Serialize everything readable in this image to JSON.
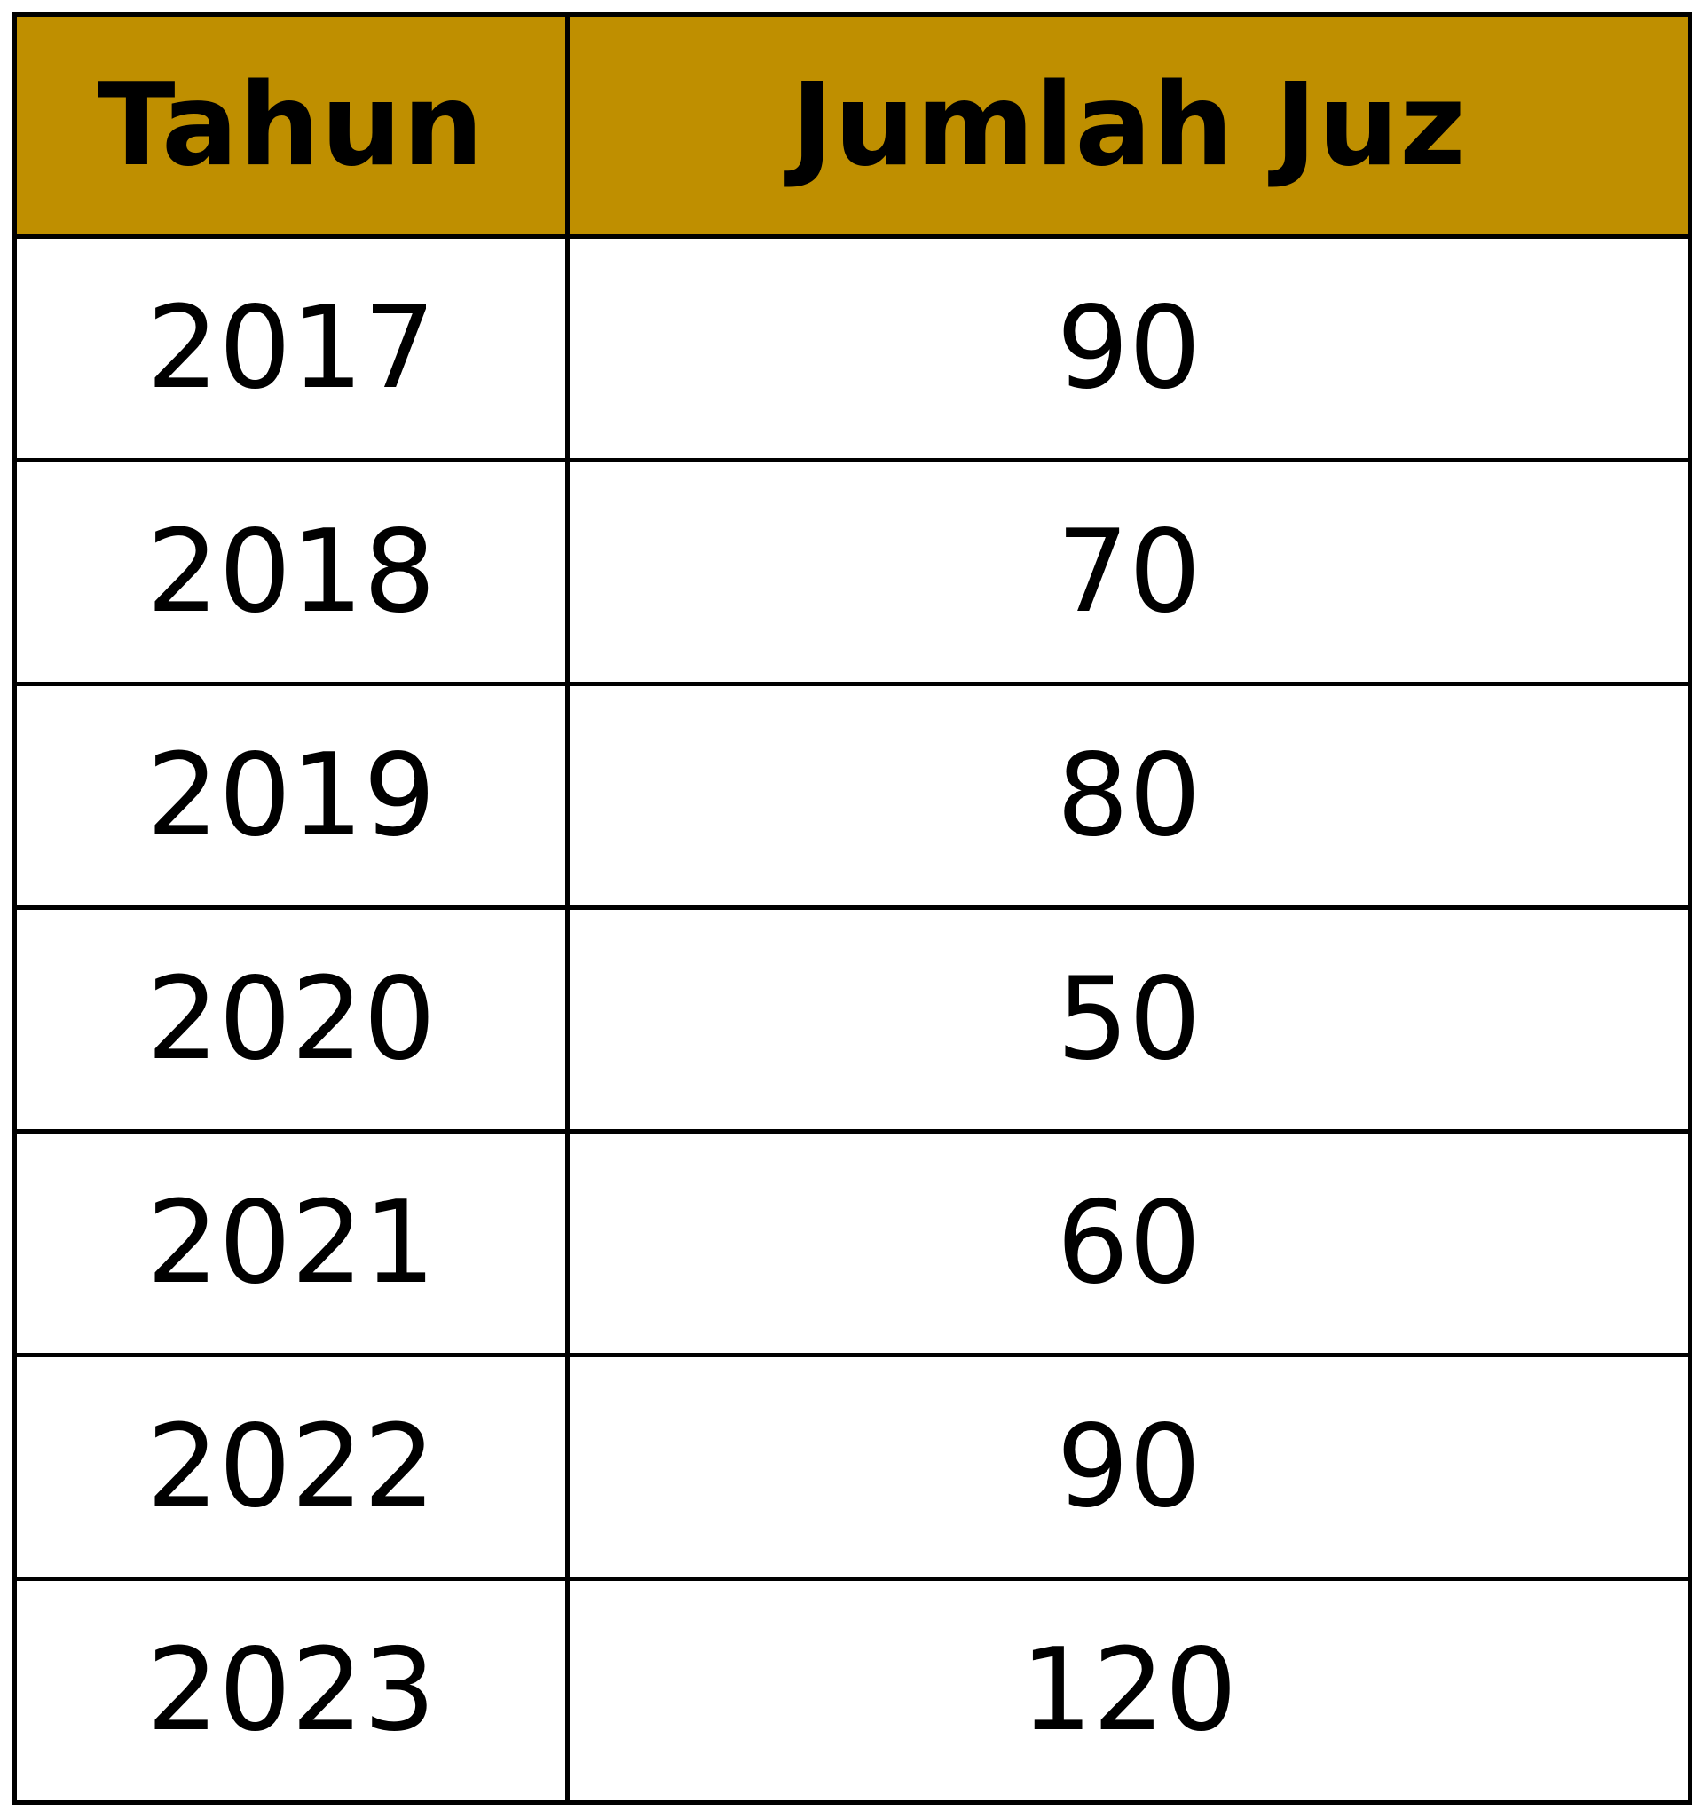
{
  "colors": {
    "header_background": "#bf8f00",
    "border": "#000000",
    "cell_background": "#ffffff",
    "text": "#000000"
  },
  "chart_data": {
    "type": "table",
    "columns": [
      "Tahun",
      "Jumlah Juz"
    ],
    "rows": [
      [
        "2017",
        "90"
      ],
      [
        "2018",
        "70"
      ],
      [
        "2019",
        "80"
      ],
      [
        "2020",
        "50"
      ],
      [
        "2021",
        "60"
      ],
      [
        "2022",
        "90"
      ],
      [
        "2023",
        "120"
      ]
    ],
    "x": [
      2017,
      2018,
      2019,
      2020,
      2021,
      2022,
      2023
    ],
    "values": [
      90,
      70,
      80,
      50,
      60,
      90,
      120
    ]
  }
}
